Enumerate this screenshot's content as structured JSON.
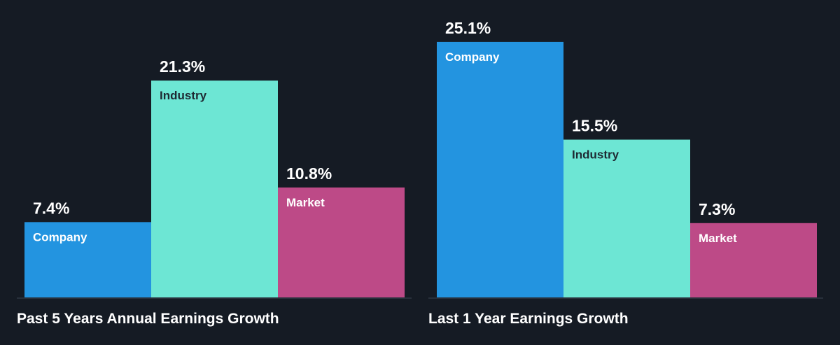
{
  "colors": {
    "background": "#151b24",
    "company": "#2394e0",
    "industry": "#6de6d4",
    "market": "#bd4a87",
    "baseline": "#3a4452",
    "value_text": "#ffffff",
    "company_label_text": "#ffffff",
    "industry_label_text": "#1e2a33",
    "market_label_text": "#ffffff"
  },
  "chart_data": [
    {
      "type": "bar",
      "title": "Past 5 Years Annual Earnings Growth",
      "categories": [
        "Company",
        "Industry",
        "Market"
      ],
      "values": [
        7.4,
        21.3,
        10.8
      ],
      "value_labels": [
        "7.4%",
        "21.3%",
        "10.8%"
      ],
      "unit": "%",
      "ylim": [
        0,
        27.5
      ],
      "grid": false,
      "legend": "none"
    },
    {
      "type": "bar",
      "title": "Last 1 Year Earnings Growth",
      "categories": [
        "Company",
        "Industry",
        "Market"
      ],
      "values": [
        25.1,
        15.5,
        7.3
      ],
      "value_labels": [
        "25.1%",
        "15.5%",
        "7.3%"
      ],
      "unit": "%",
      "ylim": [
        0,
        27.5
      ],
      "grid": false,
      "legend": "none"
    }
  ]
}
